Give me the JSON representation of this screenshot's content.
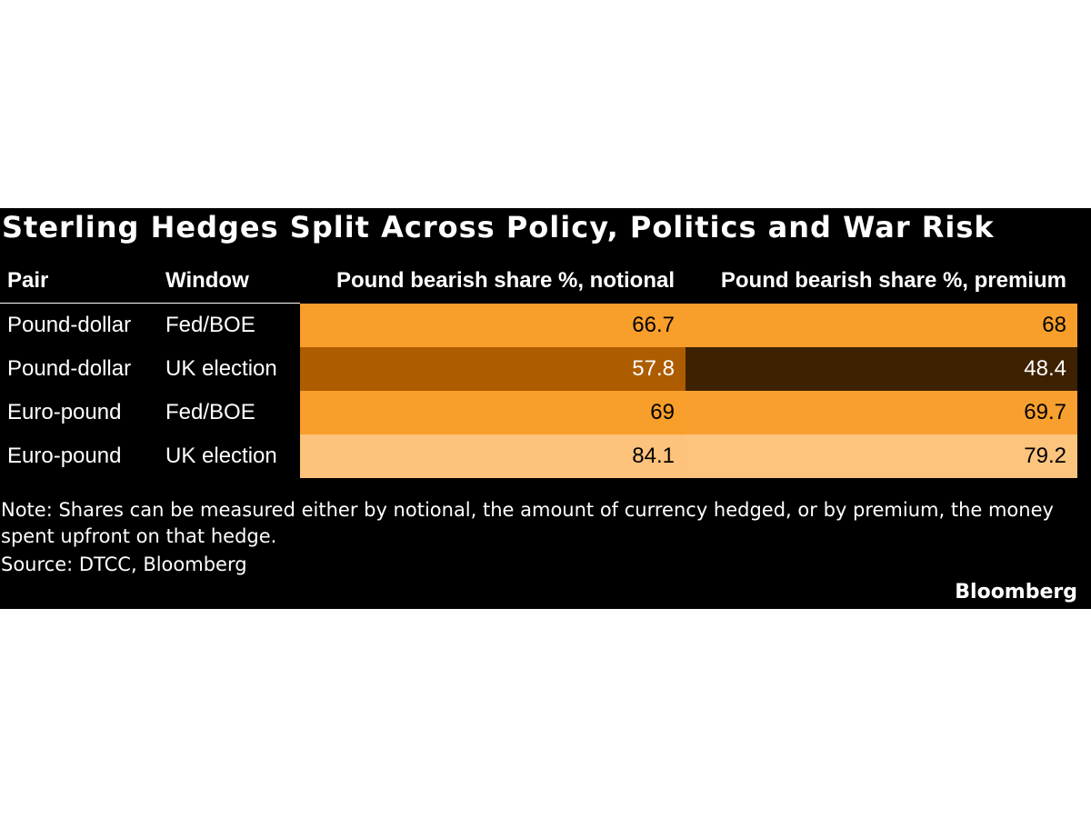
{
  "header": {
    "title": "Sterling Hedges Split Across Policy, Politics and War Risk"
  },
  "table": {
    "columns": [
      "Pair",
      "Window",
      "Pound bearish share %, notional",
      "Pound bearish share %, premium"
    ],
    "rows": [
      [
        "Pound-dollar",
        "Fed/BOE",
        66.7,
        68
      ],
      [
        "Pound-dollar",
        "UK election",
        57.8,
        48.4
      ],
      [
        "Euro-pound",
        "Fed/BOE",
        69,
        69.7
      ],
      [
        "Euro-pound",
        "UK election",
        84.1,
        79.2
      ]
    ],
    "cell_colors": [
      [
        "#f89e2b",
        "#f89e2b"
      ],
      [
        "#ae5c00",
        "#3e2100"
      ],
      [
        "#f89e2b",
        "#f8a02f"
      ],
      [
        "#fdc27b",
        "#fdc47e"
      ]
    ]
  },
  "footer": {
    "note": "Note: Shares can be measured either by notional, the amount of currency hedged, or by premium, the money spent upfront on that hedge.",
    "source": "Source: DTCC, Bloomberg",
    "brand": "Bloomberg"
  }
}
